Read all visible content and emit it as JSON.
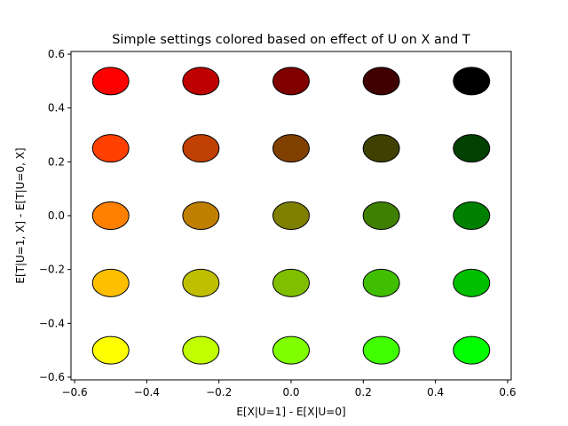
{
  "chart_data": {
    "type": "scatter",
    "title": "Simple settings colored based on effect of U on X and T",
    "xlabel": "E[X|U=1] - E[X|U=0]",
    "ylabel": "E[T|U=1, X] - E[T|U=0, X]",
    "xlim": [
      -0.61,
      0.61
    ],
    "ylim": [
      -0.61,
      0.61
    ],
    "xticks": [
      -0.6,
      -0.4,
      -0.2,
      0.0,
      0.2,
      0.4,
      0.6
    ],
    "yticks": [
      -0.6,
      -0.4,
      -0.2,
      0.0,
      0.2,
      0.4,
      0.6
    ],
    "xtick_labels": [
      "−0.6",
      "−0.4",
      "−0.2",
      "0.0",
      "0.2",
      "0.4",
      "0.6"
    ],
    "ytick_labels": [
      "−0.6",
      "−0.4",
      "−0.2",
      "0.0",
      "0.2",
      "0.4",
      "0.6"
    ],
    "grid": false,
    "marker_edge_color": "#000000",
    "points": [
      {
        "x": -0.5,
        "y": 0.5,
        "color": "#ff0000"
      },
      {
        "x": -0.25,
        "y": 0.5,
        "color": "#bf0000"
      },
      {
        "x": 0.0,
        "y": 0.5,
        "color": "#800000"
      },
      {
        "x": 0.25,
        "y": 0.5,
        "color": "#400000"
      },
      {
        "x": 0.5,
        "y": 0.5,
        "color": "#000000"
      },
      {
        "x": -0.5,
        "y": 0.25,
        "color": "#ff4000"
      },
      {
        "x": -0.25,
        "y": 0.25,
        "color": "#bf4000"
      },
      {
        "x": 0.0,
        "y": 0.25,
        "color": "#804000"
      },
      {
        "x": 0.25,
        "y": 0.25,
        "color": "#404000"
      },
      {
        "x": 0.5,
        "y": 0.25,
        "color": "#004000"
      },
      {
        "x": -0.5,
        "y": 0.0,
        "color": "#ff8000"
      },
      {
        "x": -0.25,
        "y": 0.0,
        "color": "#bf8000"
      },
      {
        "x": 0.0,
        "y": 0.0,
        "color": "#808000"
      },
      {
        "x": 0.25,
        "y": 0.0,
        "color": "#408000"
      },
      {
        "x": 0.5,
        "y": 0.0,
        "color": "#008000"
      },
      {
        "x": -0.5,
        "y": -0.25,
        "color": "#ffbf00"
      },
      {
        "x": -0.25,
        "y": -0.25,
        "color": "#bfbf00"
      },
      {
        "x": 0.0,
        "y": -0.25,
        "color": "#80bf00"
      },
      {
        "x": 0.25,
        "y": -0.25,
        "color": "#40bf00"
      },
      {
        "x": 0.5,
        "y": -0.25,
        "color": "#00bf00"
      },
      {
        "x": -0.5,
        "y": -0.5,
        "color": "#ffff00"
      },
      {
        "x": -0.25,
        "y": -0.5,
        "color": "#bfff00"
      },
      {
        "x": 0.0,
        "y": -0.5,
        "color": "#80ff00"
      },
      {
        "x": 0.25,
        "y": -0.5,
        "color": "#40ff00"
      },
      {
        "x": 0.5,
        "y": -0.5,
        "color": "#00ff00"
      }
    ]
  }
}
